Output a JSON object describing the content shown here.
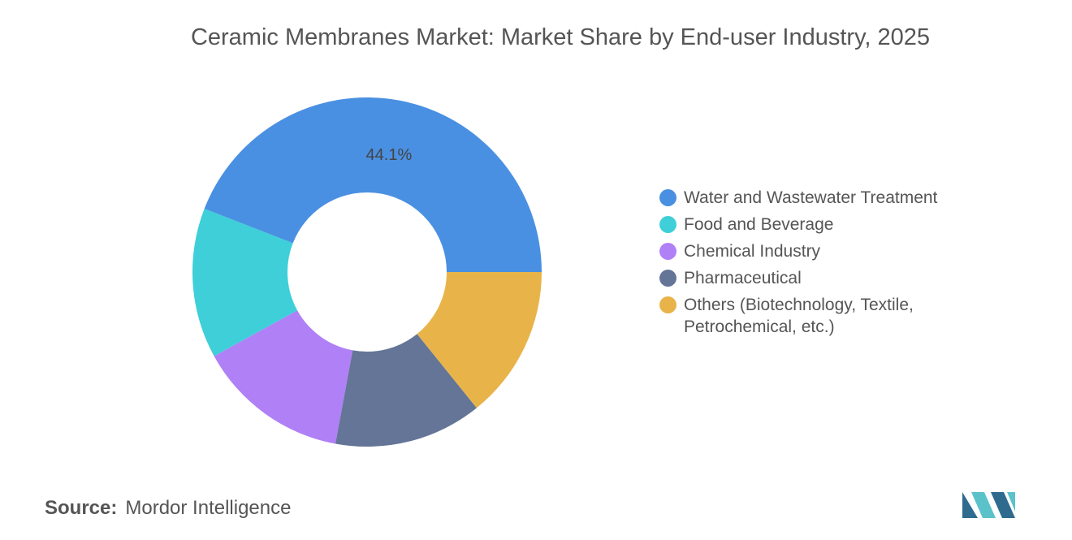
{
  "chart_data": {
    "type": "donut",
    "title": "Ceramic Membranes Market: Market Share by End-user Industry, 2025",
    "categories": [
      "Water and Wastewater Treatment",
      "Food and Beverage",
      "Chemical Industry",
      "Pharmaceutical",
      "Others (Biotechnology, Textile, Petrochemical, etc.)"
    ],
    "values": [
      44.1,
      13.9,
      14.1,
      13.7,
      14.2
    ],
    "value_labels": [
      "44.1%",
      null,
      null,
      null,
      null
    ],
    "colors": [
      "#4a90e2",
      "#3ecfd9",
      "#b080f7",
      "#647597",
      "#e8b44a"
    ],
    "legend": "right"
  },
  "source_label": "Source:",
  "source": "Mordor Intelligence"
}
